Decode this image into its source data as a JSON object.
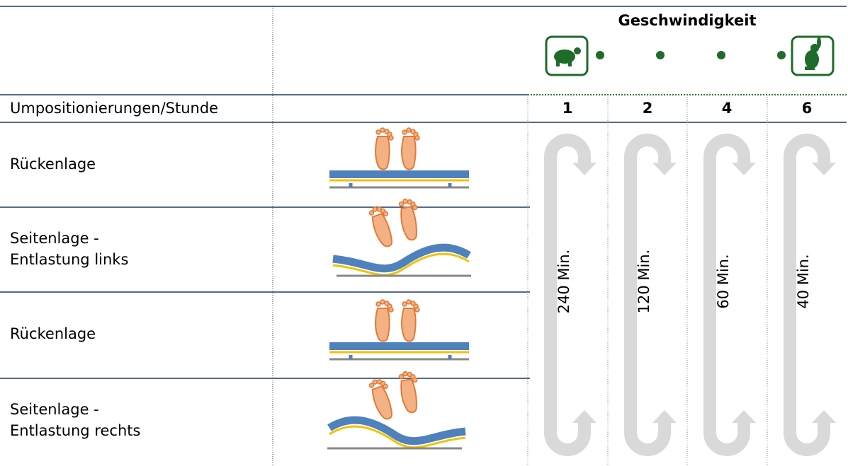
{
  "header": {
    "title": "Geschwindigkeit"
  },
  "table": {
    "header": [
      "Umpositionierungen/Stunde",
      "1",
      "2",
      "4",
      "6"
    ],
    "rows": [
      {
        "label": [
          "Rückenlage"
        ]
      },
      {
        "label": [
          "Seitenlage -",
          "Entlastung links"
        ]
      },
      {
        "label": [
          "Rückenlage"
        ]
      },
      {
        "label": [
          "Seitenlage -",
          "Entlastung rechts"
        ]
      }
    ],
    "intervals": [
      "240 Min.",
      "120 Min.",
      "60 Min.",
      "40 Min."
    ]
  }
}
